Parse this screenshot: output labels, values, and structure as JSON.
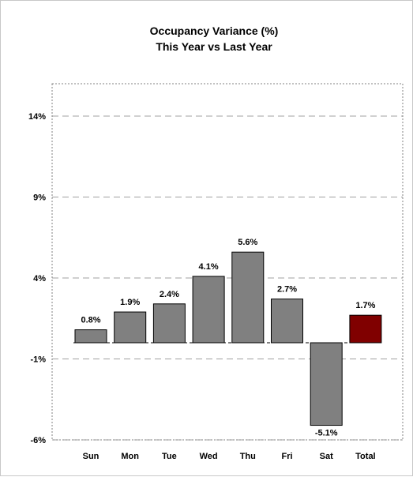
{
  "chart_data": {
    "type": "bar",
    "title": "Occupancy Variance (%)",
    "subtitle": "This Year vs Last Year",
    "xlabel": "",
    "ylabel": "",
    "categories": [
      "Sun",
      "Mon",
      "Tue",
      "Wed",
      "Thu",
      "Fri",
      "Sat",
      "Total"
    ],
    "values": [
      0.8,
      1.9,
      2.4,
      4.1,
      5.6,
      2.7,
      -5.1,
      1.7
    ],
    "data_labels": [
      "0.8%",
      "1.9%",
      "2.4%",
      "4.1%",
      "5.6%",
      "2.7%",
      "-5.1%",
      "1.7%"
    ],
    "ylim": [
      -6,
      16
    ],
    "yticks": [
      -6,
      -1,
      4,
      9,
      14
    ],
    "ytick_labels": [
      "-6%",
      "-1%",
      "4%",
      "9%",
      "14%"
    ],
    "grid": true,
    "legend": "none",
    "colors": {
      "bar": "#808080",
      "highlight_bar": "#800000",
      "highlight_category": "Total",
      "gridline": "#a0a0a0",
      "plot_border": "#808080"
    }
  }
}
